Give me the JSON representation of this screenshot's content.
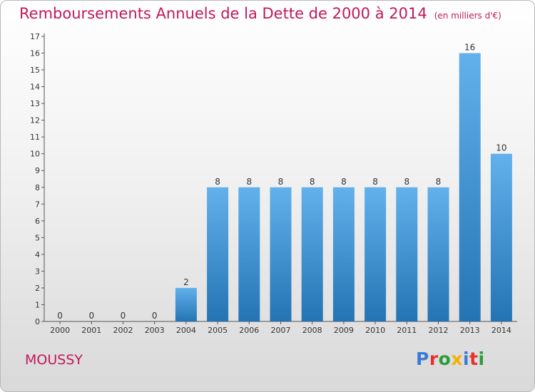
{
  "header": {
    "title": "Remboursements Annuels de la Dette de 2000 à 2014",
    "subtitle": "(en milliers d'€)"
  },
  "footer": {
    "city": "MOUSSY",
    "logo_text": "Proxiti",
    "logo_colors": [
      "#3a7bd5",
      "#e5332a",
      "#2a9d3a",
      "#f2b200",
      "#3a7bd5",
      "#e5332a",
      "#2a9d3a"
    ]
  },
  "chart_data": {
    "type": "bar",
    "title": "Remboursements Annuels de la Dette de 2000 à 2014",
    "subtitle": "(en milliers d'€)",
    "categories": [
      "2000",
      "2001",
      "2002",
      "2003",
      "2004",
      "2005",
      "2006",
      "2007",
      "2008",
      "2009",
      "2010",
      "2011",
      "2012",
      "2013",
      "2014"
    ],
    "values": [
      0,
      0,
      0,
      0,
      2,
      8,
      8,
      8,
      8,
      8,
      8,
      8,
      8,
      16,
      10
    ],
    "y_tick_labels": [
      "0",
      "1",
      "2",
      "3",
      "4",
      "5",
      "6",
      "7",
      "8",
      "9",
      "10",
      "11",
      "12",
      "13",
      "14",
      "15",
      "16",
      "17"
    ],
    "ylim": [
      0,
      17
    ],
    "grid": false,
    "bar_color_top": "#62b1ec",
    "bar_color_bottom": "#2474b4"
  }
}
